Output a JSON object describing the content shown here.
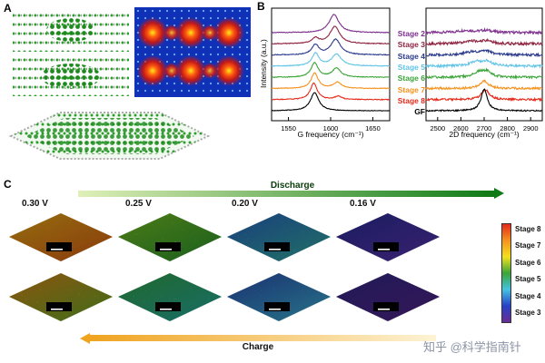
{
  "panels": {
    "a": "A",
    "b": "B",
    "c": "C"
  },
  "chart_data": [
    {
      "type": "line",
      "title": "",
      "xlabel": "G frequency (cm⁻¹)",
      "ylabel": "Intensity (a.u.)",
      "xlim": [
        1530,
        1670
      ],
      "xticks": [
        1550,
        1600,
        1650
      ],
      "grid": false,
      "legend_position": "right-of-plot",
      "series": [
        {
          "name": "Stage 2",
          "color": "#7d2f8e",
          "peaks": [
            [
              1604,
              7,
              1.0
            ]
          ],
          "noise": 0.02
        },
        {
          "name": "Stage 3",
          "color": "#8e2440",
          "peaks": [
            [
              1582,
              5,
              0.3
            ],
            [
              1605,
              7,
              0.95
            ]
          ],
          "noise": 0.02
        },
        {
          "name": "Stage 4",
          "color": "#2b3a8c",
          "peaks": [
            [
              1582,
              5,
              0.55
            ],
            [
              1606,
              7,
              0.85
            ]
          ],
          "noise": 0.02
        },
        {
          "name": "Stage 5",
          "color": "#62c4e6",
          "peaks": [
            [
              1582,
              5,
              0.7
            ],
            [
              1607,
              7,
              0.65
            ]
          ],
          "noise": 0.02
        },
        {
          "name": "Stage 6",
          "color": "#3aa537",
          "peaks": [
            [
              1581,
              5,
              0.8
            ],
            [
              1607,
              6,
              0.5
            ]
          ],
          "noise": 0.02
        },
        {
          "name": "Stage 7",
          "color": "#f6921e",
          "peaks": [
            [
              1581,
              5,
              0.85
            ],
            [
              1608,
              6,
              0.33
            ]
          ],
          "noise": 0.02
        },
        {
          "name": "Stage 8",
          "color": "#e52a1a",
          "peaks": [
            [
              1580,
              5,
              0.9
            ],
            [
              1609,
              5,
              0.18
            ]
          ],
          "noise": 0.02
        },
        {
          "name": "GF",
          "color": "#000000",
          "peaks": [
            [
              1581,
              6,
              1.0
            ]
          ],
          "noise": 0.015
        }
      ]
    },
    {
      "type": "line",
      "title": "",
      "xlabel": "2D frequency (cm⁻¹)",
      "ylabel": "",
      "xlim": [
        2450,
        2950
      ],
      "xticks": [
        2500,
        2600,
        2700,
        2800,
        2900
      ],
      "grid": false,
      "series": [
        {
          "name": "Stage 2",
          "color": "#7d2f8e",
          "peaks": [
            [
              2620,
              40,
              0.1
            ],
            [
              2710,
              35,
              0.1
            ]
          ],
          "noise": 0.06
        },
        {
          "name": "Stage 3",
          "color": "#8e2440",
          "peaks": [
            [
              2640,
              35,
              0.12
            ],
            [
              2710,
              30,
              0.13
            ]
          ],
          "noise": 0.06
        },
        {
          "name": "Stage 4",
          "color": "#2b3a8c",
          "peaks": [
            [
              2650,
              35,
              0.15
            ],
            [
              2710,
              28,
              0.16
            ]
          ],
          "noise": 0.055
        },
        {
          "name": "Stage 5",
          "color": "#62c4e6",
          "peaks": [
            [
              2665,
              30,
              0.2
            ],
            [
              2712,
              25,
              0.2
            ]
          ],
          "noise": 0.055
        },
        {
          "name": "Stage 6",
          "color": "#3aa537",
          "peaks": [
            [
              2680,
              28,
              0.25
            ],
            [
              2714,
              22,
              0.22
            ]
          ],
          "noise": 0.05
        },
        {
          "name": "Stage 7",
          "color": "#f6921e",
          "peaks": [
            [
              2700,
              22,
              0.35
            ]
          ],
          "noise": 0.05
        },
        {
          "name": "Stage 8",
          "color": "#e52a1a",
          "peaks": [
            [
              2705,
              20,
              0.45
            ]
          ],
          "noise": 0.045
        },
        {
          "name": "GF",
          "color": "#000000",
          "peaks": [
            [
              2700,
              16,
              1.0
            ]
          ],
          "noise": 0.03
        }
      ]
    }
  ],
  "panel_c": {
    "discharge_label": "Discharge",
    "charge_label": "Charge",
    "discharge_colors": [
      "#dff0b8",
      "#0f7a16"
    ],
    "charge_colors": [
      "#fdf3d4",
      "#f0a31f"
    ],
    "voltages": [
      "0.30 V",
      "0.25 V",
      "0.20 V",
      "0.16 V"
    ],
    "afm_rows": [
      {
        "name": "discharge-row",
        "tiles": [
          [
            "#f0b11a",
            "#e06414"
          ],
          [
            "#7cc625",
            "#2f9e30"
          ],
          [
            "#2a66c8",
            "#35b0a8"
          ],
          [
            "#2a2f9c",
            "#5a35b4"
          ]
        ]
      },
      {
        "name": "charge-row",
        "tiles": [
          [
            "#e08a1a",
            "#6fae28"
          ],
          [
            "#35a84a",
            "#28b0a0"
          ],
          [
            "#2a50b8",
            "#3fb4d8"
          ],
          [
            "#342a8e",
            "#55278e"
          ]
        ]
      }
    ],
    "colorbar": {
      "stops": [
        "#e52a1a",
        "#f6921e",
        "#f3e11c",
        "#3aa537",
        "#45c2e0",
        "#2742c8",
        "#6a2d93"
      ],
      "labels": [
        "Stage 8",
        "Stage 7",
        "Stage 6",
        "Stage 5",
        "Stage 4",
        "Stage 3"
      ]
    }
  },
  "watermark": {
    "text": "知乎 @科学指南针",
    "color": "#8a93a6"
  }
}
